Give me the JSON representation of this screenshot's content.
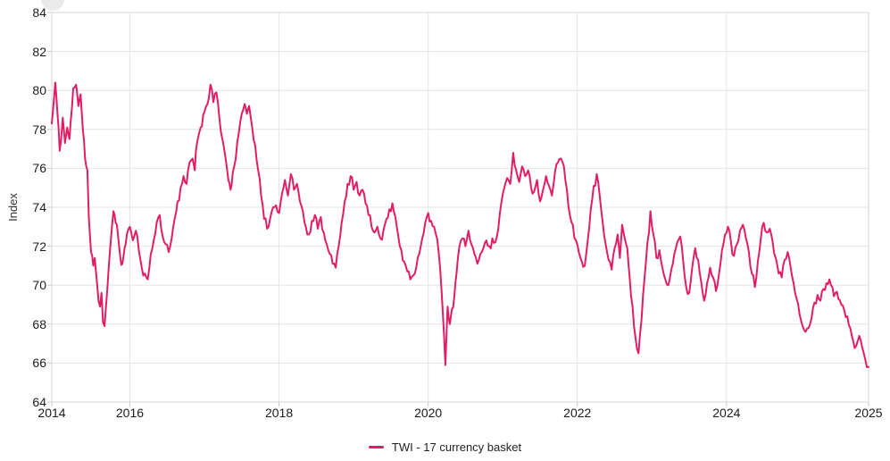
{
  "y_axis": {
    "title": "Index"
  },
  "legend": {
    "label": "TWI - 17 currency basket"
  },
  "colors": {
    "line": "#e31d65",
    "grid": "#e5e5e5",
    "border": "#d6d6d6",
    "tick": "#c9c9c9",
    "tick_text": "#1c1c1c",
    "axis_title_text": "#333333",
    "legend_text": "#222222",
    "background": "#ffffff"
  },
  "chart_data": {
    "type": "line",
    "title": "",
    "xlabel": "",
    "ylabel": "Index",
    "ylim": [
      64,
      84
    ],
    "xlim": [
      2014.953,
      2025.905
    ],
    "grid": true,
    "legend_position": "bottom",
    "y_ticks": [
      84,
      82,
      80,
      78,
      76,
      74,
      72,
      70,
      68,
      66,
      64
    ],
    "x_ticks": [
      {
        "label": "2014",
        "t": 2014.953
      },
      {
        "label": "2016",
        "t": 2016
      },
      {
        "label": "2018",
        "t": 2018
      },
      {
        "label": "2020",
        "t": 2020
      },
      {
        "label": "2022",
        "t": 2022
      },
      {
        "label": "2024",
        "t": 2024
      },
      {
        "label": "2025",
        "t": 2025.905
      }
    ],
    "noise_amplitude": 0.24,
    "noise_seed": 11,
    "points_per_year": 52,
    "series": [
      {
        "name": "TWI - 17 currency basket",
        "color": "#e31d65",
        "points": [
          [
            2014.953,
            78.3
          ],
          [
            2014.97,
            79.0
          ],
          [
            2015.0,
            80.4
          ],
          [
            2015.03,
            78.8
          ],
          [
            2015.06,
            76.9
          ],
          [
            2015.1,
            78.6
          ],
          [
            2015.13,
            77.3
          ],
          [
            2015.16,
            78.1
          ],
          [
            2015.19,
            77.5
          ],
          [
            2015.24,
            80.1
          ],
          [
            2015.28,
            80.3
          ],
          [
            2015.31,
            79.2
          ],
          [
            2015.34,
            79.8
          ],
          [
            2015.37,
            78.0
          ],
          [
            2015.4,
            76.5
          ],
          [
            2015.43,
            75.9
          ],
          [
            2015.45,
            73.5
          ],
          [
            2015.48,
            71.7
          ],
          [
            2015.51,
            71.0
          ],
          [
            2015.53,
            71.4
          ],
          [
            2015.56,
            70.1
          ],
          [
            2015.58,
            69.2
          ],
          [
            2015.6,
            68.9
          ],
          [
            2015.62,
            69.6
          ],
          [
            2015.64,
            68.1
          ],
          [
            2015.66,
            67.9
          ],
          [
            2015.68,
            68.9
          ],
          [
            2015.7,
            69.9
          ],
          [
            2015.73,
            71.6
          ],
          [
            2015.76,
            73.0
          ],
          [
            2015.78,
            73.8
          ],
          [
            2015.81,
            73.2
          ],
          [
            2015.84,
            72.6
          ],
          [
            2015.87,
            71.5
          ],
          [
            2015.9,
            71.1
          ],
          [
            2015.93,
            71.9
          ],
          [
            2015.96,
            72.6
          ],
          [
            2016.0,
            73.0
          ],
          [
            2016.04,
            72.3
          ],
          [
            2016.08,
            72.8
          ],
          [
            2016.12,
            71.8
          ],
          [
            2016.16,
            70.9
          ],
          [
            2016.2,
            70.6
          ],
          [
            2016.24,
            70.3
          ],
          [
            2016.28,
            71.6
          ],
          [
            2016.32,
            72.3
          ],
          [
            2016.36,
            73.2
          ],
          [
            2016.4,
            73.6
          ],
          [
            2016.44,
            72.5
          ],
          [
            2016.48,
            72.1
          ],
          [
            2016.52,
            71.7
          ],
          [
            2016.56,
            72.4
          ],
          [
            2016.6,
            73.4
          ],
          [
            2016.64,
            74.3
          ],
          [
            2016.68,
            75.0
          ],
          [
            2016.72,
            75.6
          ],
          [
            2016.76,
            75.2
          ],
          [
            2016.8,
            76.3
          ],
          [
            2016.84,
            76.5
          ],
          [
            2016.87,
            75.9
          ],
          [
            2016.9,
            77.3
          ],
          [
            2016.95,
            78.1
          ],
          [
            2017.0,
            78.9
          ],
          [
            2017.04,
            79.3
          ],
          [
            2017.08,
            80.3
          ],
          [
            2017.12,
            79.4
          ],
          [
            2017.16,
            79.9
          ],
          [
            2017.2,
            78.6
          ],
          [
            2017.24,
            77.5
          ],
          [
            2017.28,
            76.6
          ],
          [
            2017.32,
            75.4
          ],
          [
            2017.35,
            74.9
          ],
          [
            2017.38,
            75.8
          ],
          [
            2017.42,
            76.5
          ],
          [
            2017.46,
            77.8
          ],
          [
            2017.5,
            78.8
          ],
          [
            2017.54,
            79.3
          ],
          [
            2017.57,
            78.8
          ],
          [
            2017.6,
            79.2
          ],
          [
            2017.64,
            78.1
          ],
          [
            2017.68,
            77.2
          ],
          [
            2017.72,
            75.9
          ],
          [
            2017.76,
            74.6
          ],
          [
            2017.8,
            73.4
          ],
          [
            2017.84,
            72.9
          ],
          [
            2017.88,
            73.4
          ],
          [
            2017.92,
            74.0
          ],
          [
            2017.96,
            74.1
          ],
          [
            2018.0,
            73.7
          ],
          [
            2018.04,
            74.7
          ],
          [
            2018.08,
            75.4
          ],
          [
            2018.12,
            74.6
          ],
          [
            2018.16,
            75.7
          ],
          [
            2018.2,
            74.9
          ],
          [
            2018.24,
            75.2
          ],
          [
            2018.28,
            74.3
          ],
          [
            2018.32,
            73.8
          ],
          [
            2018.36,
            73.0
          ],
          [
            2018.4,
            72.6
          ],
          [
            2018.44,
            73.3
          ],
          [
            2018.48,
            73.6
          ],
          [
            2018.52,
            72.9
          ],
          [
            2018.56,
            73.5
          ],
          [
            2018.6,
            72.7
          ],
          [
            2018.64,
            72.1
          ],
          [
            2018.68,
            71.6
          ],
          [
            2018.72,
            71.1
          ],
          [
            2018.76,
            70.9
          ],
          [
            2018.8,
            72.0
          ],
          [
            2018.84,
            73.2
          ],
          [
            2018.88,
            74.3
          ],
          [
            2018.92,
            75.2
          ],
          [
            2018.96,
            75.6
          ],
          [
            2019.0,
            74.9
          ],
          [
            2019.04,
            75.3
          ],
          [
            2019.08,
            74.6
          ],
          [
            2019.12,
            74.9
          ],
          [
            2019.16,
            74.2
          ],
          [
            2019.2,
            73.6
          ],
          [
            2019.24,
            73.0
          ],
          [
            2019.28,
            72.7
          ],
          [
            2019.32,
            73.0
          ],
          [
            2019.36,
            72.4
          ],
          [
            2019.4,
            72.8
          ],
          [
            2019.44,
            73.4
          ],
          [
            2019.48,
            73.9
          ],
          [
            2019.52,
            74.2
          ],
          [
            2019.56,
            73.5
          ],
          [
            2019.6,
            72.5
          ],
          [
            2019.64,
            71.8
          ],
          [
            2019.68,
            71.2
          ],
          [
            2019.72,
            70.7
          ],
          [
            2019.76,
            70.3
          ],
          [
            2019.8,
            70.5
          ],
          [
            2019.84,
            70.9
          ],
          [
            2019.88,
            71.6
          ],
          [
            2019.92,
            72.4
          ],
          [
            2019.96,
            73.2
          ],
          [
            2020.0,
            73.7
          ],
          [
            2020.04,
            73.3
          ],
          [
            2020.08,
            73.0
          ],
          [
            2020.12,
            72.4
          ],
          [
            2020.16,
            70.9
          ],
          [
            2020.2,
            68.3
          ],
          [
            2020.23,
            65.9
          ],
          [
            2020.26,
            68.9
          ],
          [
            2020.29,
            68.0
          ],
          [
            2020.32,
            68.8
          ],
          [
            2020.35,
            69.4
          ],
          [
            2020.38,
            70.6
          ],
          [
            2020.42,
            72.0
          ],
          [
            2020.46,
            72.4
          ],
          [
            2020.5,
            72.0
          ],
          [
            2020.54,
            72.8
          ],
          [
            2020.58,
            72.1
          ],
          [
            2020.62,
            71.6
          ],
          [
            2020.66,
            71.1
          ],
          [
            2020.7,
            71.6
          ],
          [
            2020.74,
            71.9
          ],
          [
            2020.78,
            72.3
          ],
          [
            2020.82,
            72.0
          ],
          [
            2020.86,
            72.4
          ],
          [
            2020.9,
            72.2
          ],
          [
            2020.94,
            72.9
          ],
          [
            2020.98,
            74.2
          ],
          [
            2021.02,
            75.0
          ],
          [
            2021.06,
            75.5
          ],
          [
            2021.1,
            75.2
          ],
          [
            2021.14,
            76.8
          ],
          [
            2021.18,
            75.9
          ],
          [
            2021.22,
            75.3
          ],
          [
            2021.26,
            76.1
          ],
          [
            2021.3,
            75.6
          ],
          [
            2021.34,
            75.9
          ],
          [
            2021.38,
            75.0
          ],
          [
            2021.42,
            74.8
          ],
          [
            2021.46,
            75.4
          ],
          [
            2021.5,
            74.3
          ],
          [
            2021.54,
            74.9
          ],
          [
            2021.58,
            75.6
          ],
          [
            2021.62,
            75.1
          ],
          [
            2021.66,
            74.6
          ],
          [
            2021.7,
            75.8
          ],
          [
            2021.74,
            76.3
          ],
          [
            2021.78,
            76.5
          ],
          [
            2021.82,
            76.1
          ],
          [
            2021.86,
            74.9
          ],
          [
            2021.9,
            73.6
          ],
          [
            2021.94,
            73.1
          ],
          [
            2021.98,
            72.3
          ],
          [
            2022.02,
            71.7
          ],
          [
            2022.06,
            71.2
          ],
          [
            2022.1,
            71.0
          ],
          [
            2022.14,
            72.3
          ],
          [
            2022.18,
            73.9
          ],
          [
            2022.22,
            75.1
          ],
          [
            2022.26,
            75.7
          ],
          [
            2022.3,
            74.6
          ],
          [
            2022.34,
            73.2
          ],
          [
            2022.38,
            72.1
          ],
          [
            2022.42,
            71.3
          ],
          [
            2022.46,
            70.8
          ],
          [
            2022.5,
            71.9
          ],
          [
            2022.54,
            72.6
          ],
          [
            2022.57,
            71.4
          ],
          [
            2022.6,
            73.1
          ],
          [
            2022.63,
            72.5
          ],
          [
            2022.67,
            71.9
          ],
          [
            2022.7,
            70.5
          ],
          [
            2022.74,
            68.9
          ],
          [
            2022.78,
            67.3
          ],
          [
            2022.82,
            66.5
          ],
          [
            2022.86,
            68.2
          ],
          [
            2022.9,
            70.3
          ],
          [
            2022.94,
            72.2
          ],
          [
            2022.98,
            73.8
          ],
          [
            2023.02,
            72.6
          ],
          [
            2023.06,
            71.4
          ],
          [
            2023.1,
            71.8
          ],
          [
            2023.14,
            70.9
          ],
          [
            2023.18,
            70.3
          ],
          [
            2023.22,
            70.0
          ],
          [
            2023.26,
            70.8
          ],
          [
            2023.3,
            71.6
          ],
          [
            2023.34,
            72.2
          ],
          [
            2023.38,
            72.5
          ],
          [
            2023.42,
            71.2
          ],
          [
            2023.46,
            69.9
          ],
          [
            2023.5,
            69.6
          ],
          [
            2023.54,
            70.9
          ],
          [
            2023.58,
            71.9
          ],
          [
            2023.62,
            71.3
          ],
          [
            2023.66,
            70.2
          ],
          [
            2023.7,
            69.2
          ],
          [
            2023.74,
            70.1
          ],
          [
            2023.78,
            70.9
          ],
          [
            2023.82,
            70.4
          ],
          [
            2023.86,
            69.7
          ],
          [
            2023.9,
            70.6
          ],
          [
            2023.94,
            71.8
          ],
          [
            2023.98,
            72.6
          ],
          [
            2024.02,
            73.0
          ],
          [
            2024.06,
            72.2
          ],
          [
            2024.1,
            71.5
          ],
          [
            2024.14,
            72.1
          ],
          [
            2024.18,
            72.8
          ],
          [
            2024.22,
            73.1
          ],
          [
            2024.26,
            72.4
          ],
          [
            2024.3,
            71.7
          ],
          [
            2024.34,
            70.6
          ],
          [
            2024.38,
            69.9
          ],
          [
            2024.42,
            71.2
          ],
          [
            2024.46,
            72.4
          ],
          [
            2024.5,
            73.2
          ],
          [
            2024.54,
            72.7
          ],
          [
            2024.58,
            72.9
          ],
          [
            2024.62,
            72.2
          ],
          [
            2024.66,
            71.4
          ],
          [
            2024.7,
            70.6
          ],
          [
            2024.74,
            70.4
          ],
          [
            2024.78,
            71.3
          ],
          [
            2024.82,
            71.7
          ],
          [
            2024.86,
            70.9
          ],
          [
            2024.9,
            70.1
          ],
          [
            2024.94,
            69.3
          ],
          [
            2024.98,
            68.5
          ],
          [
            2025.02,
            67.9
          ],
          [
            2025.06,
            67.6
          ],
          [
            2025.1,
            67.8
          ],
          [
            2025.14,
            68.3
          ],
          [
            2025.18,
            69.1
          ],
          [
            2025.22,
            69.5
          ],
          [
            2025.26,
            69.2
          ],
          [
            2025.3,
            69.8
          ],
          [
            2025.34,
            70.1
          ],
          [
            2025.38,
            70.3
          ],
          [
            2025.42,
            69.9
          ],
          [
            2025.46,
            69.6
          ],
          [
            2025.5,
            69.3
          ],
          [
            2025.54,
            69.0
          ],
          [
            2025.58,
            68.7
          ],
          [
            2025.62,
            68.4
          ],
          [
            2025.66,
            67.8
          ],
          [
            2025.7,
            67.1
          ],
          [
            2025.74,
            66.9
          ],
          [
            2025.78,
            67.4
          ],
          [
            2025.82,
            66.8
          ],
          [
            2025.86,
            66.2
          ],
          [
            2025.905,
            65.8
          ]
        ]
      }
    ]
  }
}
